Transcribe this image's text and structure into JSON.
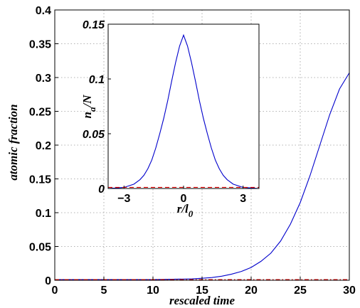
{
  "chart_data": [
    {
      "type": "line",
      "xlabel": "rescaled time",
      "ylabel": "atomic fraction",
      "xlim": [
        0,
        30
      ],
      "ylim": [
        0,
        0.4
      ],
      "xticks": [
        "0",
        "5",
        "10",
        "15",
        "20",
        "25",
        "30"
      ],
      "yticks": [
        "0",
        "0.05",
        "0.1",
        "0.15",
        "0.2",
        "0.25",
        "0.3",
        "0.35",
        "0.4"
      ],
      "grid": true,
      "series": [
        {
          "style": "solid",
          "color": "#0000cc",
          "x": [
            0,
            5,
            10,
            12,
            14,
            15,
            16,
            17,
            18,
            19,
            20,
            21,
            22,
            23,
            24,
            25,
            26,
            27,
            28,
            29,
            30
          ],
          "y": [
            0.001,
            0.001,
            0.001,
            0.0015,
            0.002,
            0.003,
            0.004,
            0.006,
            0.009,
            0.013,
            0.019,
            0.028,
            0.04,
            0.058,
            0.083,
            0.115,
            0.155,
            0.2,
            0.245,
            0.283,
            0.307
          ]
        },
        {
          "style": "dash-dot",
          "color": "#dd0000",
          "x": [
            0,
            30
          ],
          "y": [
            0.001,
            0.001
          ]
        }
      ]
    },
    {
      "type": "line",
      "inset": true,
      "xlabel": "r/l",
      "xlabel_sub": "0",
      "ylabel": "n",
      "ylabel_sub": "a",
      "ylabel_tail": "/N",
      "xlim": [
        -3.8,
        3.8
      ],
      "ylim": [
        0,
        0.15
      ],
      "xticks": [
        "−3",
        "0",
        "3"
      ],
      "yticks": [
        "0",
        "0.05",
        "0.1",
        "0.15"
      ],
      "series": [
        {
          "style": "solid",
          "color": "#0000cc",
          "x": [
            -3.8,
            -3.0,
            -2.5,
            -2.2,
            -2.0,
            -1.8,
            -1.6,
            -1.4,
            -1.2,
            -1.0,
            -0.8,
            -0.6,
            -0.4,
            -0.2,
            0.0,
            0.2,
            0.4,
            0.6,
            0.8,
            1.0,
            1.2,
            1.4,
            1.6,
            1.8,
            2.0,
            2.2,
            2.5,
            3.0,
            3.8
          ],
          "y": [
            0.0,
            0.001,
            0.004,
            0.008,
            0.012,
            0.018,
            0.026,
            0.037,
            0.05,
            0.064,
            0.08,
            0.098,
            0.115,
            0.13,
            0.14,
            0.13,
            0.115,
            0.098,
            0.08,
            0.064,
            0.05,
            0.037,
            0.026,
            0.018,
            0.012,
            0.008,
            0.004,
            0.001,
            0.0
          ]
        },
        {
          "style": "dashed",
          "color": "#dd0000",
          "x": [
            -3.8,
            3.8
          ],
          "y": [
            0.001,
            0.001
          ]
        }
      ]
    }
  ]
}
